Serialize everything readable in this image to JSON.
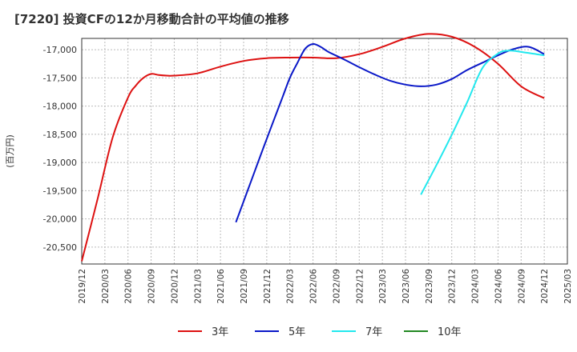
{
  "chart_data": {
    "type": "line",
    "title": "[7220]  投資CFの12か月移動合計の平均値の推移",
    "ylabel": "(百万円)",
    "xlabel": "",
    "ylim": [
      -20800,
      -16800
    ],
    "y_ticks": [
      -17000,
      -17500,
      -18000,
      -18500,
      -19000,
      -19500,
      -20000,
      -20500
    ],
    "y_tick_labels": [
      "-17,000",
      "-17,500",
      "-18,000",
      "-18,500",
      "-19,000",
      "-19,500",
      "-20,000",
      "-20,500"
    ],
    "x_tick_labels": [
      "2019/12",
      "2020/03",
      "2020/06",
      "2020/09",
      "2020/12",
      "2021/03",
      "2021/06",
      "2021/09",
      "2021/12",
      "2022/03",
      "2022/06",
      "2022/09",
      "2022/12",
      "2023/03",
      "2023/06",
      "2023/09",
      "2023/12",
      "2024/03",
      "2024/06",
      "2024/09",
      "2024/12",
      "2025/03"
    ],
    "x_index_note": "x values are months since 2019/12 (0 = 2019/12, 63 = 2025/03)",
    "x_range": [
      0,
      63
    ],
    "grid": true,
    "legend_position": "bottom",
    "series": [
      {
        "name": "3年",
        "color": "#dd1111",
        "x": [
          0,
          2,
          4,
          6,
          7,
          8,
          9,
          10,
          11,
          12,
          15,
          18,
          21,
          24,
          27,
          30,
          33,
          36,
          39,
          42,
          45,
          48,
          51,
          54,
          57,
          60
        ],
        "y": [
          -20750,
          -19680,
          -18560,
          -17850,
          -17640,
          -17500,
          -17430,
          -17450,
          -17460,
          -17460,
          -17420,
          -17300,
          -17200,
          -17150,
          -17140,
          -17140,
          -17150,
          -17080,
          -16950,
          -16800,
          -16720,
          -16770,
          -16950,
          -17250,
          -17650,
          -17860
        ]
      },
      {
        "name": "5年",
        "color": "#0a18c8",
        "x": [
          20,
          22,
          24,
          26,
          27,
          28,
          29,
          30,
          31,
          32,
          34,
          36,
          38,
          40,
          42,
          44,
          46,
          48,
          50,
          52,
          54,
          56,
          58,
          60
        ],
        "y": [
          -20060,
          -19320,
          -18580,
          -17860,
          -17500,
          -17230,
          -16980,
          -16900,
          -16950,
          -17040,
          -17170,
          -17310,
          -17440,
          -17550,
          -17620,
          -17650,
          -17620,
          -17520,
          -17360,
          -17230,
          -17100,
          -16990,
          -16950,
          -17080
        ]
      },
      {
        "name": "7年",
        "color": "#22e8ee",
        "x": [
          44,
          46,
          48,
          50,
          52,
          54,
          55,
          56,
          57,
          58,
          59,
          60
        ],
        "y": [
          -19570,
          -19050,
          -18510,
          -17930,
          -17320,
          -17070,
          -17020,
          -17020,
          -17040,
          -17060,
          -17080,
          -17100
        ]
      },
      {
        "name": "10年",
        "color": "#228822",
        "x": [],
        "y": []
      }
    ]
  }
}
